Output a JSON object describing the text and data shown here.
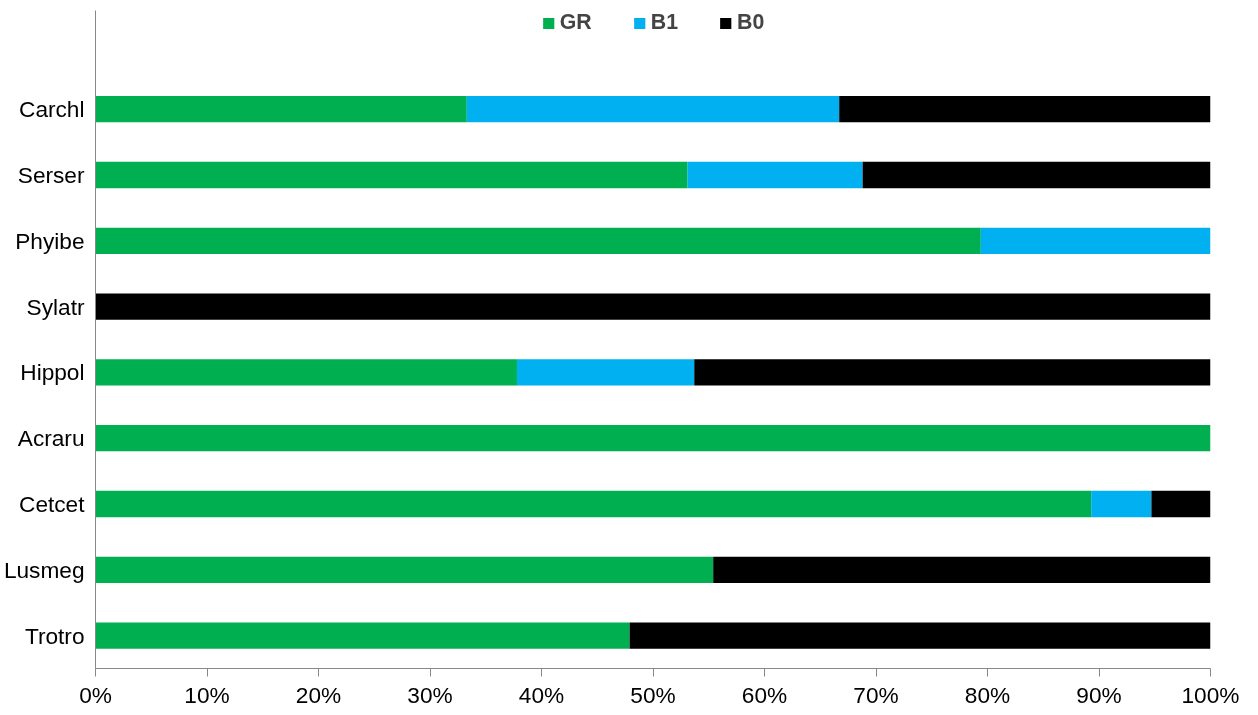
{
  "chart_data": {
    "type": "bar",
    "orientation": "horizontal",
    "stacked": true,
    "categories": [
      "Carchl",
      "Serser",
      "Phyibe",
      "Sylatr",
      "Hippol",
      "Acraru",
      "Cetcet",
      "Lusmeg",
      "Trotro"
    ],
    "series": [
      {
        "name": "GR",
        "color": "#00b050",
        "values": [
          33.3,
          53.1,
          79.4,
          0,
          37.8,
          100,
          89.3,
          55.4,
          47.9
        ]
      },
      {
        "name": "B1",
        "color": "#00b0f0",
        "values": [
          33.4,
          15.7,
          20.6,
          0,
          15.9,
          0,
          5.4,
          0,
          0
        ]
      },
      {
        "name": "B0",
        "color": "#000000",
        "values": [
          33.3,
          31.2,
          0,
          100,
          46.3,
          0,
          5.3,
          44.6,
          52.1
        ]
      }
    ],
    "xlim": [
      0,
      100
    ],
    "xticks": [
      {
        "value": 0,
        "label": "0%"
      },
      {
        "value": 10,
        "label": "10%"
      },
      {
        "value": 20,
        "label": "20%"
      },
      {
        "value": 30,
        "label": "30%"
      },
      {
        "value": 40,
        "label": "40%"
      },
      {
        "value": 50,
        "label": "50%"
      },
      {
        "value": 60,
        "label": "60%"
      },
      {
        "value": 70,
        "label": "70%"
      },
      {
        "value": 80,
        "label": "80%"
      },
      {
        "value": 90,
        "label": "90%"
      },
      {
        "value": 100,
        "label": "100%"
      }
    ],
    "grid": false,
    "legend": "top"
  }
}
